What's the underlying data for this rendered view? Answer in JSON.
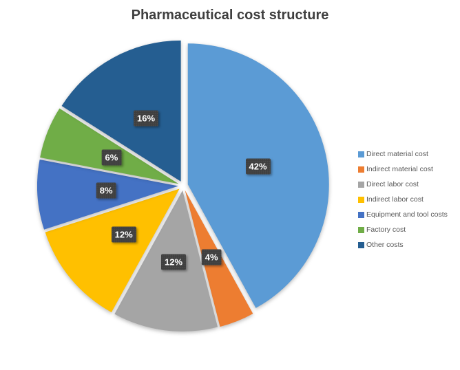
{
  "title": "Pharmaceutical cost structure",
  "chart_data": {
    "type": "pie",
    "title": "Pharmaceutical cost structure",
    "direction": "clockwise",
    "start_angle_deg": 0,
    "legend_position": "right",
    "exploded": true,
    "slices": [
      {
        "label": "Direct material cost",
        "value": 42,
        "percent_label": "42%",
        "color": "#5B9BD5"
      },
      {
        "label": "Indirect material cost",
        "value": 4,
        "percent_label": "4%",
        "color": "#ED7D31"
      },
      {
        "label": "Direct labor cost",
        "value": 12,
        "percent_label": "12%",
        "color": "#A5A5A5"
      },
      {
        "label": "Indirect labor cost",
        "value": 12,
        "percent_label": "12%",
        "color": "#FFC000"
      },
      {
        "label": "Equipment and tool costs",
        "value": 8,
        "percent_label": "8%",
        "color": "#4472C4"
      },
      {
        "label": "Factory cost",
        "value": 6,
        "percent_label": "6%",
        "color": "#70AD47"
      },
      {
        "label": "Other costs",
        "value": 16,
        "percent_label": "16%",
        "color": "#255E91"
      }
    ],
    "data_label_style": {
      "background": "#3F3F3F",
      "text_color": "#FFFFFF"
    }
  }
}
